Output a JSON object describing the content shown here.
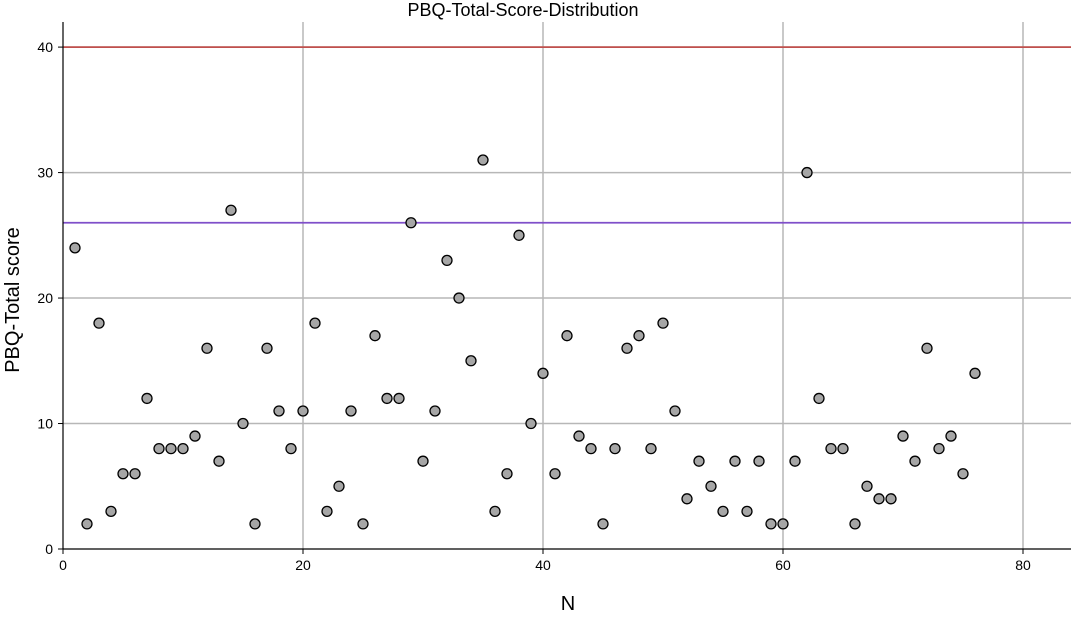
{
  "chart_data": {
    "type": "scatter",
    "title": "PBQ-Total-Score-Distribution",
    "xlabel": "N",
    "ylabel": "PBQ-Total score",
    "xlim": [
      0,
      84
    ],
    "ylim": [
      0,
      42
    ],
    "xticks": [
      0,
      20,
      40,
      60,
      80
    ],
    "yticks": [
      0,
      10,
      20,
      30,
      40
    ],
    "grid": true,
    "reference_lines": [
      {
        "y": 40,
        "color": "#c0504d"
      },
      {
        "y": 26,
        "color": "#7f4fc9"
      }
    ],
    "marker_color": "#a6a6a6",
    "marker_edge_color": "#000000",
    "series": [
      {
        "x": [
          1,
          2,
          3,
          4,
          5,
          6,
          7,
          8,
          9,
          10,
          11,
          12,
          13,
          14,
          15,
          16,
          17,
          18,
          19,
          20,
          21,
          22,
          23,
          24,
          25,
          26,
          27,
          28,
          29,
          30,
          31,
          32,
          33,
          34,
          35,
          36,
          37,
          38,
          39,
          40,
          41,
          42,
          43,
          44,
          45,
          46,
          47,
          48,
          49,
          50,
          51,
          52,
          53,
          54,
          55,
          56,
          57,
          58,
          59,
          60,
          61,
          62,
          63,
          64,
          65,
          66,
          67,
          68,
          69,
          70,
          71,
          72,
          73,
          74,
          75,
          76
        ],
        "y": [
          24,
          2,
          18,
          3,
          6,
          6,
          12,
          8,
          8,
          8,
          9,
          16,
          7,
          27,
          10,
          2,
          16,
          11,
          8,
          11,
          18,
          3,
          5,
          11,
          2,
          17,
          12,
          12,
          26,
          7,
          11,
          23,
          20,
          15,
          31,
          3,
          6,
          25,
          10,
          14,
          6,
          17,
          9,
          8,
          2,
          8,
          16,
          17,
          8,
          18,
          11,
          4,
          7,
          5,
          3,
          7,
          3,
          7,
          2,
          2,
          7,
          30,
          12,
          8,
          8,
          2,
          5,
          4,
          4,
          9,
          7,
          16,
          8,
          9,
          6,
          14
        ]
      }
    ]
  }
}
